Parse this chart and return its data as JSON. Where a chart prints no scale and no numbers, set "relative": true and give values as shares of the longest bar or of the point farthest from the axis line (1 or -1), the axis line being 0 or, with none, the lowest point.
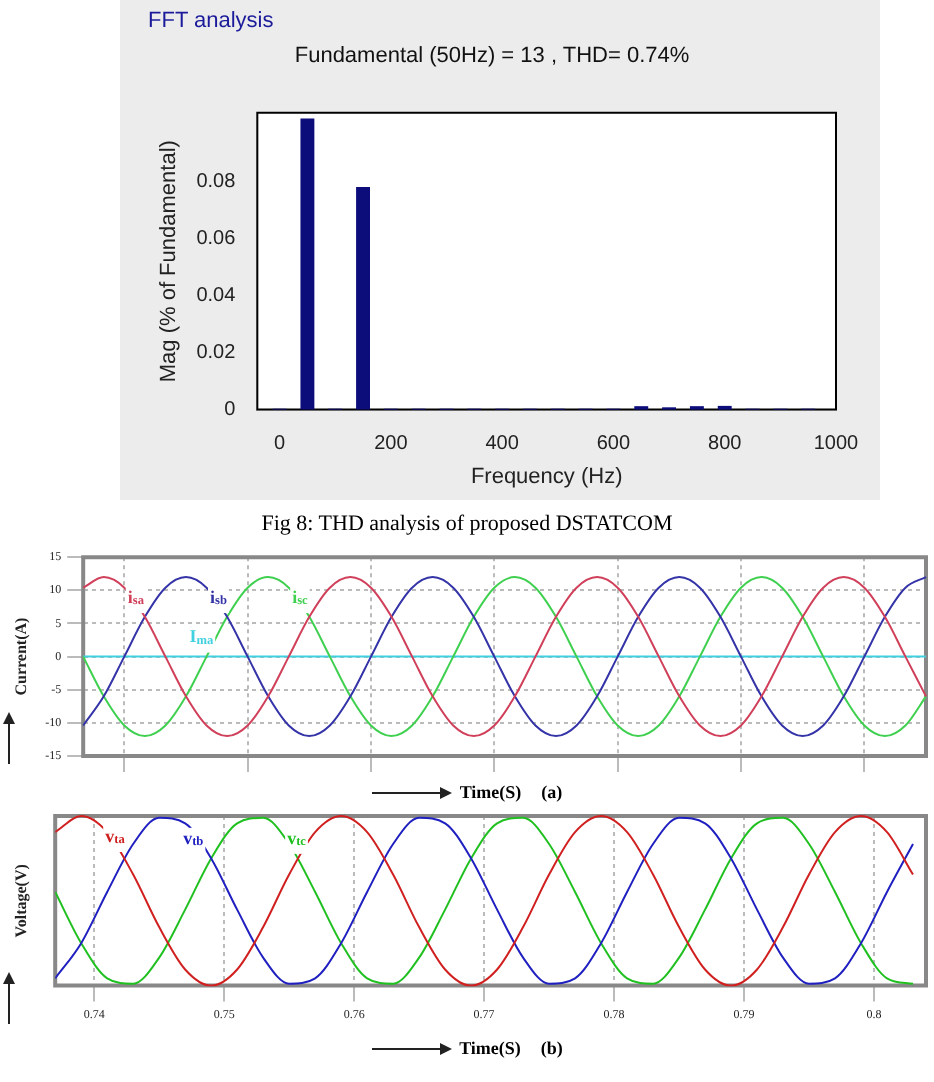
{
  "chart_data": [
    {
      "type": "bar",
      "title": "FFT analysis",
      "subtitle": "Fundamental (50Hz) = 13 , THD= 0.74%",
      "xlabel": "Frequency (Hz)",
      "ylabel": "Mag (% of Fundamental)",
      "annotations": [
        "Fig 8: THD analysis of proposed DSTATCOM"
      ],
      "x": [
        0,
        50,
        100,
        150,
        200,
        250,
        300,
        350,
        400,
        450,
        500,
        550,
        600,
        650,
        700,
        750,
        800,
        850,
        900,
        950
      ],
      "values": [
        0.0003,
        0.102,
        0.0003,
        0.078,
        0.0003,
        0.0003,
        0.0003,
        0.0003,
        0.0003,
        0.0003,
        0.0003,
        0.0003,
        0.0003,
        0.0012,
        0.0008,
        0.0012,
        0.0013,
        0.0003,
        0.0003,
        0.0003
      ],
      "color": "#0c0c7a",
      "xlim": [
        -40,
        1000
      ],
      "xticks": [
        0,
        200,
        400,
        600,
        800,
        1000
      ],
      "ylim": [
        0,
        0.104
      ],
      "yticks": [
        0,
        0.02,
        0.04,
        0.06,
        0.08
      ],
      "grid": false,
      "legend": false
    },
    {
      "type": "line",
      "xlabel": "Time(S)",
      "ylabel": "Current(A)",
      "annotations": [
        "(a)"
      ],
      "categories": [
        null,
        null,
        null,
        null,
        null,
        null,
        null,
        null,
        null,
        null,
        null,
        null,
        null,
        null,
        null,
        null,
        null,
        null,
        null,
        null,
        null,
        null,
        null,
        null,
        null,
        null,
        null,
        null,
        null,
        null,
        null,
        null,
        null,
        null,
        null,
        null,
        null,
        null,
        null,
        null,
        null,
        null
      ],
      "series": [
        {
          "name": "i$_{sa}$",
          "color": "#d0405a",
          "values": [
            10.4,
            12,
            10.4,
            6,
            0,
            -6,
            -10.4,
            -12,
            -10.4,
            -6,
            0,
            6,
            10.4,
            12,
            10.4,
            6,
            0,
            -6,
            -10.4,
            -12,
            -10.4,
            -6,
            0,
            6,
            10.4,
            12,
            10.4,
            6,
            0,
            -6,
            -10.4,
            -12,
            -10.4,
            -6,
            0,
            6,
            10.4,
            12,
            10.4,
            6,
            0,
            -6
          ]
        },
        {
          "name": "i$_{sb}$",
          "color": "#3434a8",
          "values": [
            -10.4,
            -6,
            0,
            6,
            10.4,
            12,
            10.4,
            6,
            0,
            -6,
            -10.4,
            -12,
            -10.4,
            -6,
            0,
            6,
            10.4,
            12,
            10.4,
            6,
            0,
            -6,
            -10.4,
            -12,
            -10.4,
            -6,
            0,
            6,
            10.4,
            12,
            10.4,
            6,
            0,
            -6,
            -10.4,
            -12,
            -10.4,
            -6,
            0,
            6,
            10.4,
            12
          ]
        },
        {
          "name": "i$_{sc}$",
          "color": "#40d050",
          "values": [
            0,
            -6,
            -10.4,
            -12,
            -10.4,
            -6,
            0,
            6,
            10.4,
            12,
            10.4,
            6,
            0,
            -6,
            -10.4,
            -12,
            -10.4,
            -6,
            0,
            6,
            10.4,
            12,
            10.4,
            6,
            0,
            -6,
            -10.4,
            -12,
            -10.4,
            -6,
            0,
            6,
            10.4,
            12,
            10.4,
            6,
            0,
            -6,
            -10.4,
            -12,
            -10.4,
            -6
          ]
        },
        {
          "name": "I$_{ma}$",
          "color": "#40d0e0",
          "values": [
            0,
            0,
            0,
            0,
            0,
            0,
            0,
            0,
            0,
            0,
            0,
            0,
            0,
            0,
            0,
            0,
            0,
            0,
            0,
            0,
            0,
            0,
            0,
            0,
            0,
            0,
            0,
            0,
            0,
            0,
            0,
            0,
            0,
            0,
            0,
            0,
            0,
            0,
            0,
            0,
            0,
            0
          ]
        }
      ],
      "ylim": [
        -15,
        15
      ],
      "yticks": [
        -15,
        -10,
        -5,
        0,
        5,
        10,
        15
      ],
      "tick_labels": "y",
      "grid": true,
      "legend": false,
      "marker": "none",
      "line_style": "solid"
    },
    {
      "type": "line",
      "xlabel": "Time(S)",
      "ylabel": "Voltage(V)",
      "annotations": [
        "(b)"
      ],
      "relative": true,
      "x": [
        0.737,
        0.739,
        0.741,
        0.743,
        0.745,
        0.747,
        0.749,
        0.751,
        0.753,
        0.755,
        0.757,
        0.759,
        0.761,
        0.763,
        0.765,
        0.767,
        0.769,
        0.771,
        0.773,
        0.775,
        0.777,
        0.779,
        0.781,
        0.783,
        0.785,
        0.787,
        0.789,
        0.791,
        0.793,
        0.795,
        0.797,
        0.799,
        0.801,
        0.803
      ],
      "series": [
        {
          "name": "v$_{ta}$",
          "color": "#d02020",
          "values": [
            0.905,
            1,
            0.905,
            0.655,
            0.345,
            0.095,
            0,
            0.095,
            0.345,
            0.655,
            0.905,
            1,
            0.905,
            0.655,
            0.345,
            0.095,
            0,
            0.095,
            0.345,
            0.655,
            0.905,
            1,
            0.905,
            0.655,
            0.345,
            0.095,
            0,
            0.095,
            0.345,
            0.655,
            0.905,
            1,
            0.905,
            0.655
          ]
        },
        {
          "name": "v$_{tb}$",
          "color": "#2020c0",
          "values": [
            0.043,
            0.25,
            0.552,
            0.835,
            0.989,
            0.957,
            0.75,
            0.448,
            0.165,
            0.011,
            0.043,
            0.25,
            0.552,
            0.835,
            0.989,
            0.957,
            0.75,
            0.448,
            0.165,
            0.011,
            0.043,
            0.25,
            0.552,
            0.835,
            0.989,
            0.957,
            0.75,
            0.448,
            0.165,
            0.011,
            0.043,
            0.25,
            0.552,
            0.835
          ]
        },
        {
          "name": "v$_{tc}$",
          "color": "#20c020",
          "values": [
            0.552,
            0.25,
            0.043,
            0.011,
            0.165,
            0.448,
            0.75,
            0.957,
            0.989,
            0.835,
            0.552,
            0.25,
            0.043,
            0.011,
            0.165,
            0.448,
            0.75,
            0.957,
            0.989,
            0.835,
            0.552,
            0.25,
            0.043,
            0.011,
            0.165,
            0.448,
            0.75,
            0.957,
            0.989,
            0.835,
            0.552,
            0.25,
            0.043,
            0.011
          ]
        }
      ],
      "xlim": [
        0.737,
        0.804
      ],
      "xticks": [
        0.74,
        0.75,
        0.76,
        0.77,
        0.78,
        0.79,
        {
          "value": 0.8,
          "label": "0.8"
        }
      ],
      "grid": "x",
      "legend": false,
      "marker": "none",
      "line_style": "solid"
    }
  ]
}
